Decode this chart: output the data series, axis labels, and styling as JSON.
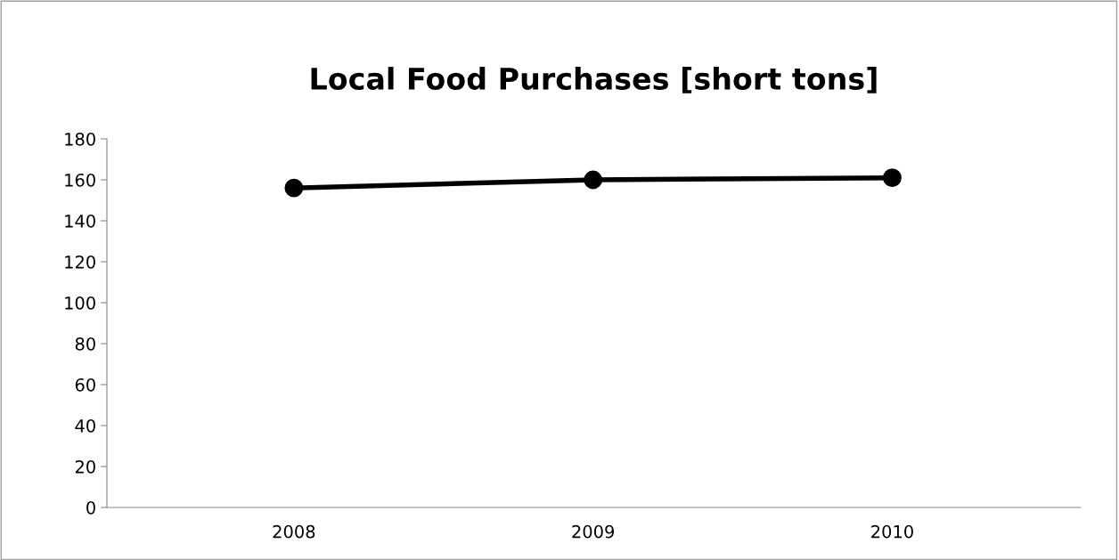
{
  "chart_data": {
    "type": "line",
    "title": "Local Food Purchases [short tons]",
    "categories": [
      "2008",
      "2009",
      "2010"
    ],
    "series": [
      {
        "color": "#000000",
        "values": [
          156,
          160,
          161
        ]
      }
    ],
    "ylim": [
      0,
      180
    ],
    "yticks": [
      0,
      20,
      40,
      60,
      80,
      100,
      120,
      140,
      160,
      180
    ],
    "marker": "circle",
    "line_style": "solid"
  }
}
